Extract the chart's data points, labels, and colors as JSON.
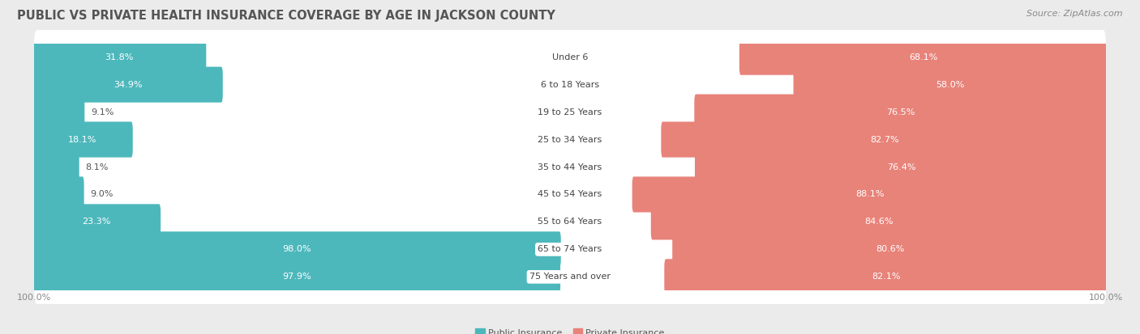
{
  "title": "PUBLIC VS PRIVATE HEALTH INSURANCE COVERAGE BY AGE IN JACKSON COUNTY",
  "source": "Source: ZipAtlas.com",
  "categories": [
    "Under 6",
    "6 to 18 Years",
    "19 to 25 Years",
    "25 to 34 Years",
    "35 to 44 Years",
    "45 to 54 Years",
    "55 to 64 Years",
    "65 to 74 Years",
    "75 Years and over"
  ],
  "public_values": [
    31.8,
    34.9,
    9.1,
    18.1,
    8.1,
    9.0,
    23.3,
    98.0,
    97.9
  ],
  "private_values": [
    68.1,
    58.0,
    76.5,
    82.7,
    76.4,
    88.1,
    84.6,
    80.6,
    82.1
  ],
  "public_color": "#4db8bc",
  "private_color": "#e8837a",
  "bg_color": "#ebebeb",
  "bar_bg_color": "#ffffff",
  "axis_label": "100.0%",
  "legend_public": "Public Insurance",
  "legend_private": "Private Insurance",
  "title_fontsize": 10.5,
  "source_fontsize": 8,
  "label_fontsize": 8,
  "category_fontsize": 8,
  "value_fontsize": 8,
  "xlim": 100
}
